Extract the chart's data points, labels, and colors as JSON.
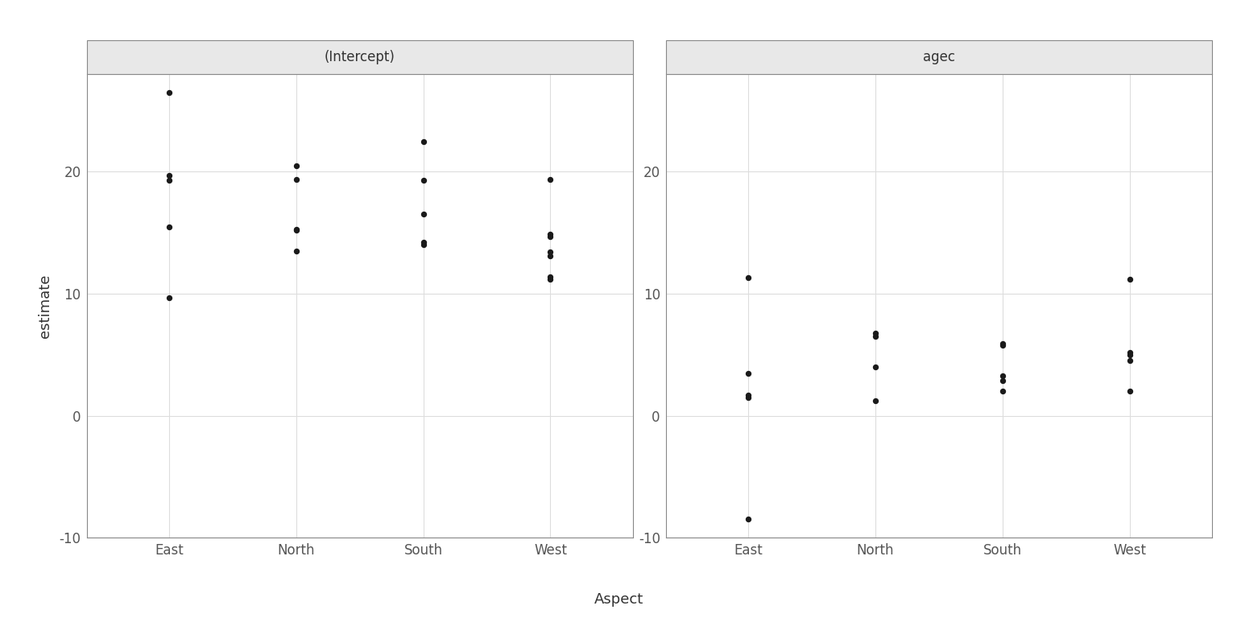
{
  "panel1_title": "(Intercept)",
  "panel2_title": "agec",
  "xlabel": "Aspect",
  "ylabel": "estimate",
  "categories": [
    "East",
    "North",
    "South",
    "West"
  ],
  "ylim": [
    -10,
    28
  ],
  "yticks": [
    -10,
    0,
    10,
    20
  ],
  "panel1_data": {
    "East": [
      9.7,
      15.5,
      19.3,
      19.7,
      26.5
    ],
    "North": [
      13.5,
      15.2,
      15.3,
      19.4,
      20.5
    ],
    "South": [
      14.0,
      14.2,
      16.5,
      19.3,
      22.5
    ],
    "West": [
      11.2,
      11.4,
      13.1,
      13.4,
      14.7,
      14.9,
      19.4
    ]
  },
  "panel2_data": {
    "East": [
      -8.5,
      1.5,
      1.7,
      3.5,
      11.3
    ],
    "North": [
      1.2,
      4.0,
      6.5,
      6.8
    ],
    "South": [
      2.0,
      2.9,
      3.3,
      5.8,
      5.9
    ],
    "West": [
      2.0,
      4.5,
      5.0,
      5.2,
      11.2
    ]
  },
  "dot_color": "#1a1a1a",
  "dot_size": 28,
  "panel_bg": "#ffffff",
  "header_bg": "#e8e8e8",
  "grid_color": "#dddddd",
  "axis_color": "#888888",
  "text_color": "#333333",
  "tick_label_color": "#555555",
  "strip_text_color": "#333333"
}
